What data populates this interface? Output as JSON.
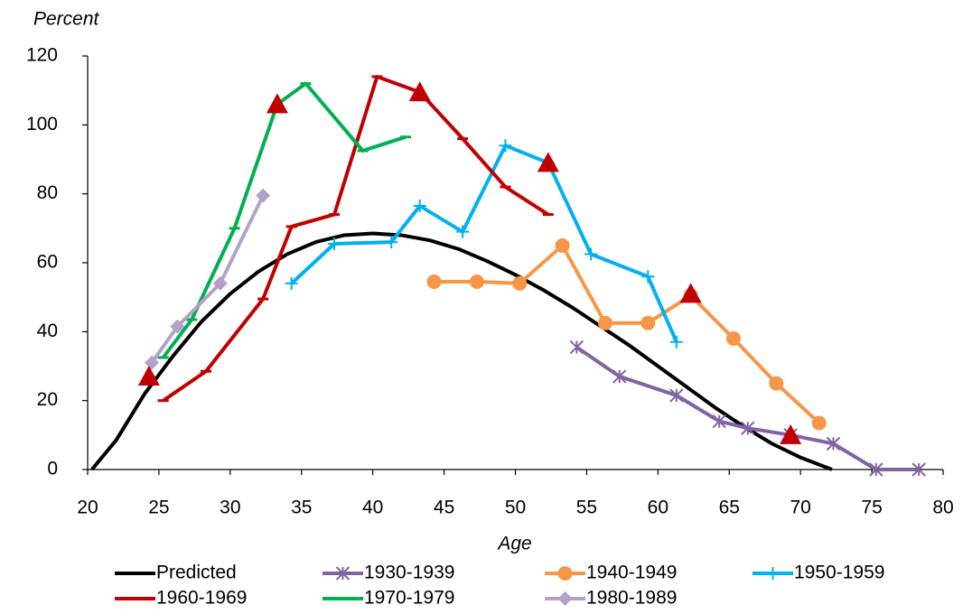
{
  "chart_data": {
    "type": "line",
    "y_label": "Percent",
    "x_label": "Age",
    "xlim": [
      20,
      80
    ],
    "xticks": [
      20,
      25,
      30,
      35,
      40,
      45,
      50,
      55,
      60,
      65,
      70,
      75,
      80
    ],
    "ylim": [
      0,
      120
    ],
    "yticks": [
      0,
      20,
      40,
      60,
      80,
      100,
      120
    ],
    "series": [
      {
        "name": "Predicted",
        "color": "#000000",
        "marker": "none",
        "x": [
          20.3,
          22,
          24,
          26,
          28,
          30,
          32,
          34,
          36,
          38,
          40,
          42,
          44,
          46,
          48,
          50,
          52,
          54,
          56,
          58,
          60,
          62,
          64,
          66,
          68,
          70,
          72.2
        ],
        "values": [
          0,
          8.5,
          22,
          33,
          43,
          51,
          57.5,
          62.5,
          66,
          68,
          68.5,
          68,
          66.5,
          64,
          60.5,
          56.5,
          52,
          47,
          41.5,
          36,
          30,
          24,
          18,
          12.5,
          7.5,
          3.5,
          0
        ]
      },
      {
        "name": "1930-1939",
        "color": "#8064a2",
        "marker": "star",
        "x": [
          54.3,
          57.3,
          61.3,
          64.3,
          66.3,
          69.3,
          72.3,
          75.3,
          78.3
        ],
        "values": [
          35.5,
          27,
          21.5,
          14,
          12,
          10,
          7.5,
          0,
          0
        ]
      },
      {
        "name": "1940-1949",
        "color": "#f79646",
        "marker": "circle",
        "x": [
          44.3,
          47.3,
          50.3,
          53.3,
          56.3,
          59.3,
          62.3,
          65.3,
          68.3,
          71.3
        ],
        "values": [
          54.5,
          54.5,
          54,
          65,
          42.5,
          42.5,
          50.5,
          38,
          25,
          13.5
        ]
      },
      {
        "name": "1950-1959",
        "color": "#00b0f0",
        "marker": "plus",
        "x": [
          34.3,
          37.3,
          41.3,
          43.3,
          46.3,
          49.3,
          52.3,
          55.3,
          59.3,
          61.3
        ],
        "values": [
          54,
          65.5,
          66,
          76.5,
          69,
          94,
          89,
          62.5,
          56,
          37
        ]
      },
      {
        "name": "1960-1969",
        "color": "#c00000",
        "marker": "dash",
        "x": [
          25.3,
          28.3,
          32.3,
          34.3,
          37.3,
          40.3,
          43.3,
          46.3,
          49.3,
          52.3
        ],
        "values": [
          20,
          28.5,
          49.5,
          70.5,
          74,
          114,
          109.5,
          96,
          82,
          74
        ]
      },
      {
        "name": "1970-1979",
        "color": "#00b050",
        "marker": "dash",
        "x": [
          25.3,
          27.3,
          30.3,
          33.3,
          35.3,
          39.3,
          42.3
        ],
        "values": [
          32.5,
          43.5,
          70,
          106,
          112,
          92.5,
          96.5
        ]
      },
      {
        "name": "1980-1989",
        "color": "#b3a2c7",
        "marker": "diamond",
        "x": [
          24.5,
          26.3,
          29.3,
          32.3
        ],
        "values": [
          31,
          41.5,
          54,
          79.5
        ]
      }
    ],
    "highlights": {
      "color": "#c00000",
      "x": [
        24.3,
        33.3,
        43.3,
        52.3,
        62.3,
        69.3
      ],
      "values": [
        27,
        106,
        109.5,
        89,
        51,
        10
      ]
    }
  }
}
